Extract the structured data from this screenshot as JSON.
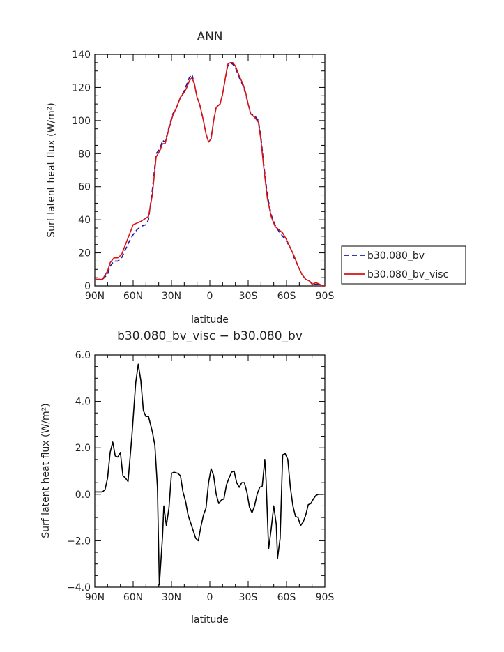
{
  "chart_data": [
    {
      "type": "line",
      "title": "ANN",
      "xlabel": "latitude",
      "ylabel": "Surf latent heat flux (W/m²)",
      "xlim": [
        -90,
        90
      ],
      "ylim": [
        0,
        140
      ],
      "xticks": [
        "90N",
        "60N",
        "30N",
        "0",
        "30S",
        "60S",
        "90S"
      ],
      "yticks": [
        "0",
        "20",
        "40",
        "60",
        "80",
        "100",
        "120",
        "140"
      ],
      "legend_position": "right",
      "series": [
        {
          "name": "b30.080_bv",
          "color": "#1a1aa8",
          "style": "dashed",
          "points": [
            [
              -90,
              4
            ],
            [
              -84,
              4
            ],
            [
              -80,
              7
            ],
            [
              -78,
              12
            ],
            [
              -75,
              15
            ],
            [
              -72,
              15
            ],
            [
              -69,
              17
            ],
            [
              -66,
              22
            ],
            [
              -63,
              27
            ],
            [
              -60,
              31
            ],
            [
              -57,
              34
            ],
            [
              -54,
              36
            ],
            [
              -50,
              37
            ],
            [
              -48,
              40
            ],
            [
              -45,
              58
            ],
            [
              -42,
              80
            ],
            [
              -39,
              83
            ],
            [
              -37,
              88
            ],
            [
              -35,
              87
            ],
            [
              -32,
              96
            ],
            [
              -29,
              104
            ],
            [
              -26,
              108
            ],
            [
              -23,
              114
            ],
            [
              -20,
              118
            ],
            [
              -18,
              122
            ],
            [
              -16,
              126
            ],
            [
              -14,
              128
            ],
            [
              -12,
              122
            ],
            [
              -10,
              114
            ],
            [
              -8,
              110
            ],
            [
              -5,
              100
            ],
            [
              -3,
              92
            ],
            [
              -1,
              87
            ],
            [
              1,
              89
            ],
            [
              3,
              100
            ],
            [
              5,
              108
            ],
            [
              8,
              110
            ],
            [
              10,
              116
            ],
            [
              12,
              125
            ],
            [
              14,
              133
            ],
            [
              16,
              135
            ],
            [
              18,
              134
            ],
            [
              20,
              132
            ],
            [
              23,
              126
            ],
            [
              26,
              121
            ],
            [
              28,
              116
            ],
            [
              30,
              110
            ],
            [
              32,
              104
            ],
            [
              35,
              103
            ],
            [
              38,
              100
            ],
            [
              40,
              90
            ],
            [
              42,
              75
            ],
            [
              45,
              55
            ],
            [
              48,
              43
            ],
            [
              51,
              37
            ],
            [
              54,
              33
            ],
            [
              57,
              30
            ],
            [
              60,
              27
            ],
            [
              63,
              23
            ],
            [
              66,
              17
            ],
            [
              69,
              12
            ],
            [
              72,
              7
            ],
            [
              75,
              4
            ],
            [
              78,
              3
            ],
            [
              80,
              1
            ],
            [
              83,
              1
            ],
            [
              86,
              1
            ],
            [
              88,
              0
            ],
            [
              90,
              0
            ]
          ]
        },
        {
          "name": "b30.080_bv_visc",
          "color": "#dd1111",
          "style": "solid",
          "points": [
            [
              -90,
              4
            ],
            [
              -84,
              4
            ],
            [
              -80,
              9
            ],
            [
              -78,
              14
            ],
            [
              -75,
              17
            ],
            [
              -72,
              17
            ],
            [
              -69,
              19
            ],
            [
              -66,
              25
            ],
            [
              -63,
              31
            ],
            [
              -60,
              37
            ],
            [
              -57,
              38
            ],
            [
              -54,
              39
            ],
            [
              -50,
              41
            ],
            [
              -48,
              42
            ],
            [
              -45,
              55
            ],
            [
              -42,
              78
            ],
            [
              -39,
              82
            ],
            [
              -37,
              86
            ],
            [
              -35,
              86
            ],
            [
              -32,
              95
            ],
            [
              -29,
              103
            ],
            [
              -26,
              108
            ],
            [
              -23,
              114
            ],
            [
              -20,
              117
            ],
            [
              -18,
              120
            ],
            [
              -16,
              124
            ],
            [
              -14,
              126
            ],
            [
              -12,
              122
            ],
            [
              -10,
              114
            ],
            [
              -8,
              110
            ],
            [
              -5,
              100
            ],
            [
              -3,
              92
            ],
            [
              -1,
              87
            ],
            [
              1,
              89
            ],
            [
              3,
              100
            ],
            [
              5,
              108
            ],
            [
              8,
              110
            ],
            [
              10,
              116
            ],
            [
              12,
              125
            ],
            [
              14,
              134
            ],
            [
              16,
              135
            ],
            [
              18,
              135
            ],
            [
              20,
              133
            ],
            [
              23,
              127
            ],
            [
              26,
              122
            ],
            [
              28,
              117
            ],
            [
              30,
              110
            ],
            [
              32,
              104
            ],
            [
              35,
              102
            ],
            [
              38,
              99
            ],
            [
              40,
              88
            ],
            [
              42,
              73
            ],
            [
              45,
              53
            ],
            [
              48,
              42
            ],
            [
              51,
              36
            ],
            [
              54,
              34
            ],
            [
              57,
              32
            ],
            [
              60,
              28
            ],
            [
              63,
              23
            ],
            [
              66,
              18
            ],
            [
              69,
              12
            ],
            [
              72,
              7
            ],
            [
              75,
              4
            ],
            [
              78,
              3
            ],
            [
              80,
              1
            ],
            [
              83,
              2
            ],
            [
              86,
              1
            ],
            [
              88,
              0
            ],
            [
              90,
              0
            ]
          ]
        }
      ]
    },
    {
      "type": "line",
      "title": "b30.080_bv_visc − b30.080_bv",
      "xlabel": "latitude",
      "ylabel": "Surf latent heat flux (W/m²)",
      "xlim": [
        -90,
        90
      ],
      "ylim": [
        -4,
        6
      ],
      "xticks": [
        "90N",
        "60N",
        "30N",
        "0",
        "30S",
        "60S",
        "90S"
      ],
      "yticks": [
        "−4.0",
        "−2.0",
        "0.0",
        "2.0",
        "4.0",
        "6.0"
      ],
      "series": [
        {
          "color": "#000000",
          "style": "solid",
          "points": [
            [
              -90,
              0.1
            ],
            [
              -87,
              0.1
            ],
            [
              -84,
              0.1
            ],
            [
              -82,
              0.2
            ],
            [
              -80,
              0.7
            ],
            [
              -78,
              1.8
            ],
            [
              -76,
              2.25
            ],
            [
              -74,
              1.65
            ],
            [
              -72,
              1.6
            ],
            [
              -70,
              1.8
            ],
            [
              -68,
              0.8
            ],
            [
              -66,
              0.7
            ],
            [
              -64,
              0.55
            ],
            [
              -61,
              2.5
            ],
            [
              -58,
              4.8
            ],
            [
              -56,
              5.6
            ],
            [
              -54,
              4.9
            ],
            [
              -52,
              3.6
            ],
            [
              -50,
              3.35
            ],
            [
              -48,
              3.35
            ],
            [
              -45,
              2.7
            ],
            [
              -43,
              2.1
            ],
            [
              -41,
              0.3
            ],
            [
              -39.5,
              -3.9
            ],
            [
              -37,
              -1.8
            ],
            [
              -36,
              -0.5
            ],
            [
              -34,
              -1.35
            ],
            [
              -32,
              -0.6
            ],
            [
              -30,
              0.9
            ],
            [
              -28,
              0.95
            ],
            [
              -25,
              0.9
            ],
            [
              -23,
              0.8
            ],
            [
              -21,
              0.1
            ],
            [
              -19,
              -0.3
            ],
            [
              -17,
              -0.9
            ],
            [
              -14,
              -1.4
            ],
            [
              -11,
              -1.9
            ],
            [
              -9,
              -2.0
            ],
            [
              -7,
              -1.4
            ],
            [
              -5,
              -0.9
            ],
            [
              -3,
              -0.6
            ],
            [
              -1,
              0.5
            ],
            [
              1,
              1.1
            ],
            [
              3,
              0.8
            ],
            [
              5,
              0.0
            ],
            [
              7,
              -0.4
            ],
            [
              9,
              -0.25
            ],
            [
              11,
              -0.2
            ],
            [
              13,
              0.4
            ],
            [
              15,
              0.7
            ],
            [
              17,
              0.95
            ],
            [
              19,
              1.0
            ],
            [
              21,
              0.5
            ],
            [
              23,
              0.3
            ],
            [
              25,
              0.5
            ],
            [
              27,
              0.5
            ],
            [
              29,
              0.1
            ],
            [
              31,
              -0.55
            ],
            [
              33,
              -0.8
            ],
            [
              35,
              -0.5
            ],
            [
              37,
              0.0
            ],
            [
              39,
              0.3
            ],
            [
              41,
              0.35
            ],
            [
              43,
              1.5
            ],
            [
              44,
              0.6
            ],
            [
              46,
              -2.35
            ],
            [
              48,
              -1.5
            ],
            [
              50,
              -0.5
            ],
            [
              52,
              -1.3
            ],
            [
              53,
              -2.75
            ],
            [
              55,
              -1.9
            ],
            [
              57,
              1.7
            ],
            [
              59,
              1.75
            ],
            [
              61,
              1.5
            ],
            [
              63,
              0.3
            ],
            [
              65,
              -0.5
            ],
            [
              67,
              -0.95
            ],
            [
              69,
              -1.0
            ],
            [
              71,
              -1.35
            ],
            [
              73,
              -1.2
            ],
            [
              75,
              -0.9
            ],
            [
              77,
              -0.45
            ],
            [
              79,
              -0.4
            ],
            [
              81,
              -0.2
            ],
            [
              83,
              -0.05
            ],
            [
              85,
              0.0
            ],
            [
              87,
              0.0
            ],
            [
              89,
              0.0
            ],
            [
              91,
              -0.05
            ],
            [
              93,
              0.0
            ],
            [
              95,
              0.05
            ],
            [
              97,
              0.1
            ]
          ]
        }
      ]
    }
  ]
}
